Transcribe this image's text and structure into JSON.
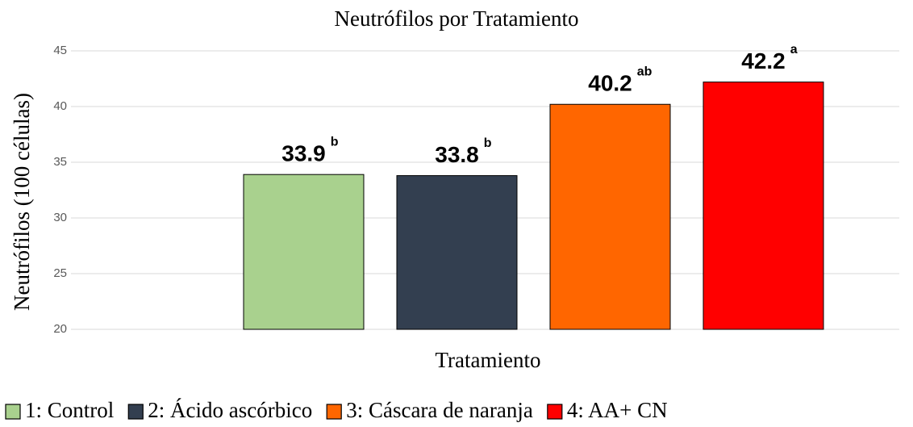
{
  "chart_data": {
    "type": "bar",
    "title": "Neutrófilos por Tratamiento",
    "x_label": "Tratamiento",
    "y_label": "Neutrófilos (100 células)",
    "categories": [
      null
    ],
    "series": [
      {
        "name": "1: Control",
        "color": "#a9d18e",
        "values": [
          33.9
        ],
        "significance": "b"
      },
      {
        "name": "2: Ácido ascórbico",
        "color": "#333f50",
        "values": [
          33.8
        ],
        "significance": "b"
      },
      {
        "name": "3: Cáscara de naranja",
        "color": "#ff6600",
        "values": [
          40.2
        ],
        "significance": "ab"
      },
      {
        "name": "4: AA+ CN",
        "color": "#ff0000",
        "values": [
          42.2
        ],
        "significance": "a"
      }
    ],
    "ylim": [
      20,
      45
    ],
    "yticks": [
      20,
      25,
      30,
      35,
      40,
      45
    ],
    "grid": true,
    "legend": "bottom"
  }
}
